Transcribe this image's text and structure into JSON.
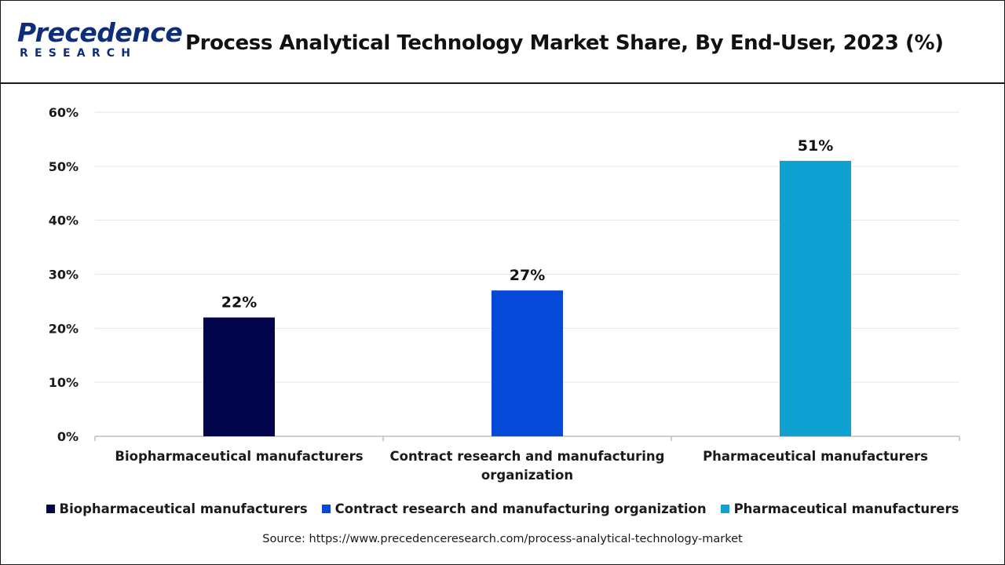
{
  "brand": {
    "name": "Precedence",
    "sub": "RESEARCH",
    "color": "#0f2e7a"
  },
  "title": "Process Analytical Technology Market Share, By End-User, 2023 (%)",
  "source": "Source: https://www.precedenceresearch.com/process-analytical-technology-market",
  "chart_data": {
    "type": "bar",
    "title": "Process Analytical Technology Market Share, By End-User, 2023 (%)",
    "xlabel": "",
    "ylabel": "",
    "ylim": [
      0,
      60
    ],
    "yticks": [
      0,
      10,
      20,
      30,
      40,
      50,
      60
    ],
    "ytick_labels": [
      "0%",
      "10%",
      "20%",
      "30%",
      "40%",
      "50%",
      "60%"
    ],
    "grid": true,
    "legend_position": "bottom",
    "categories": [
      "Biopharmaceutical manufacturers",
      "Contract research and manufacturing organization",
      "Pharmaceutical manufacturers"
    ],
    "category_label_lines": [
      [
        "Biopharmaceutical manufacturers"
      ],
      [
        "Contract research and manufacturing",
        "organization"
      ],
      [
        "Pharmaceutical manufacturers"
      ]
    ],
    "values": [
      22,
      27,
      51
    ],
    "data_labels": [
      "22%",
      "27%",
      "51%"
    ],
    "colors": [
      "#03054c",
      "#0648d8",
      "#0ea1d2"
    ],
    "legend": [
      "Biopharmaceutical manufacturers",
      "Contract research and manufacturing organization",
      "Pharmaceutical manufacturers"
    ]
  }
}
